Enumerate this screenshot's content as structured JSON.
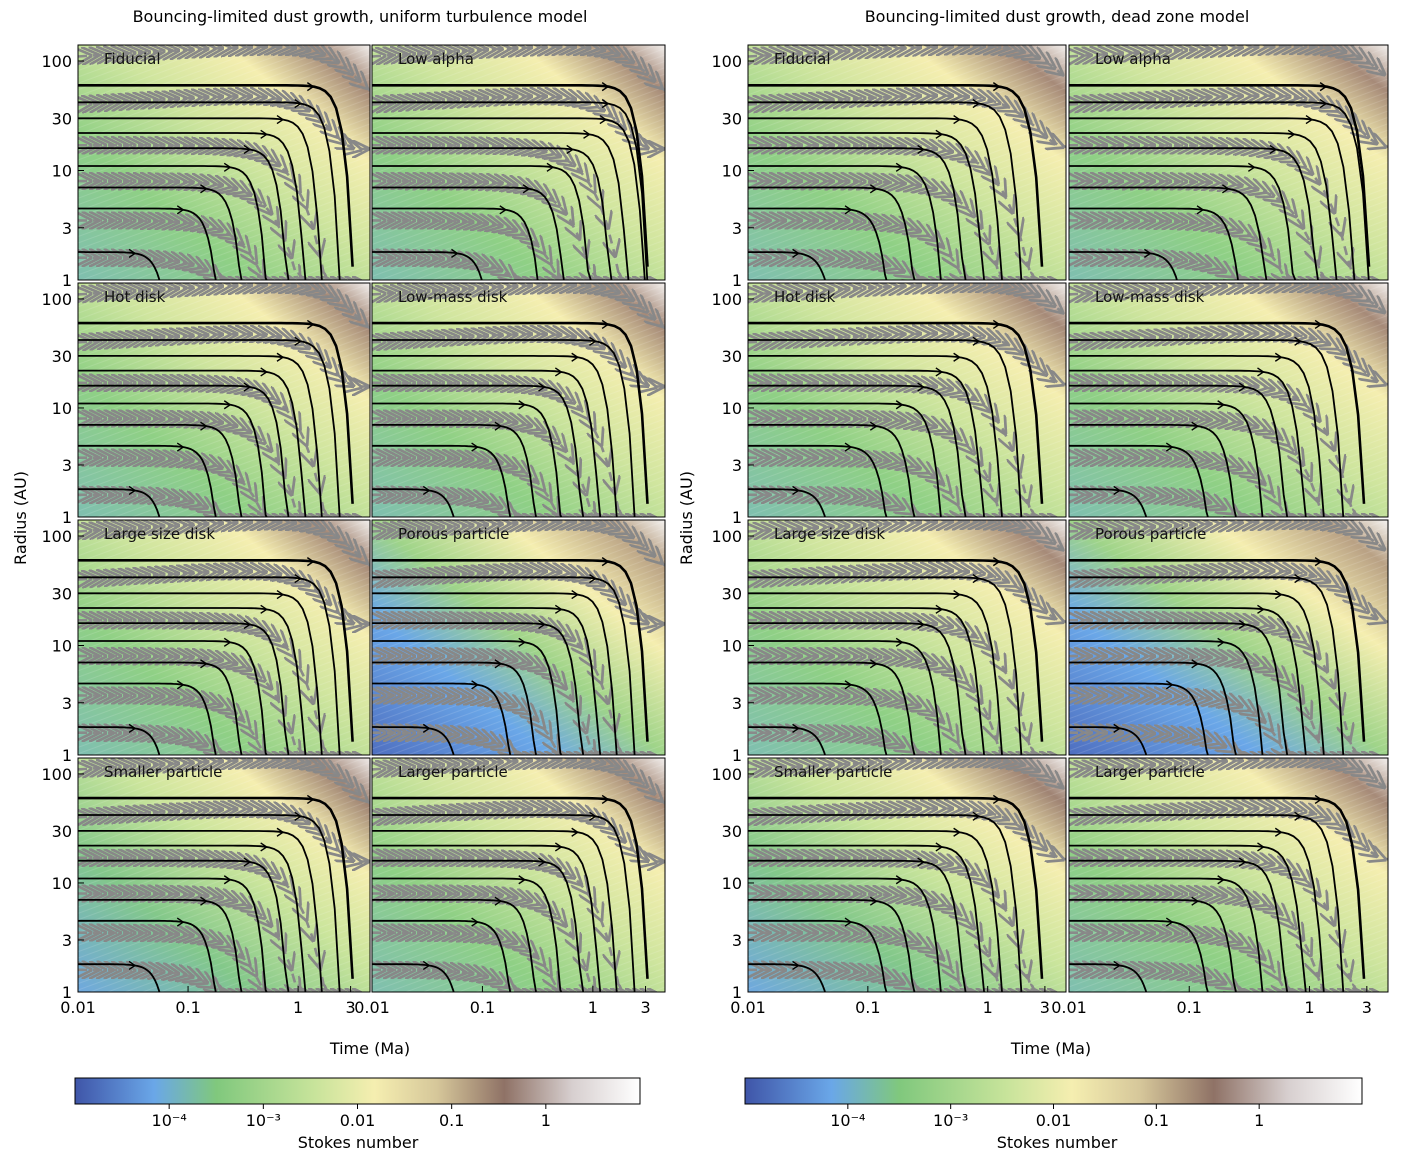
{
  "figures": [
    {
      "title": "Bouncing-limited dust growth,  uniform turbulence model",
      "ylabel": "Radius (AU)",
      "xlabel": "Time (Ma)",
      "colorbar_label": "Stokes number",
      "panels": [
        "Fiducial",
        "Low alpha",
        "Hot disk",
        "Low-mass disk",
        "Large size disk",
        "Porous particle",
        "Smaller particle",
        "Larger particle"
      ]
    },
    {
      "title": "Bouncing-limited dust growth,  dead zone model",
      "ylabel": "Radius (AU)",
      "xlabel": "Time (Ma)",
      "colorbar_label": "Stokes number",
      "panels": [
        "Fiducial",
        "Low alpha",
        "Hot disk",
        "Low-mass disk",
        "Large size disk",
        "Porous particle",
        "Smaller particle",
        "Larger particle"
      ]
    }
  ],
  "axes": {
    "x_ticks": [
      "0.01",
      "0.1",
      "1",
      "3"
    ],
    "x_tick_values": [
      0.01,
      0.1,
      1,
      3
    ],
    "y_ticks": [
      "100",
      "30",
      "10",
      "3",
      "1"
    ],
    "y_tick_values": [
      100,
      30,
      10,
      3,
      1
    ],
    "colorbar_ticks": [
      "10⁻⁴",
      "10⁻³",
      "0.01",
      "0.1",
      "1"
    ],
    "colorbar_tick_values": [
      0.0001,
      0.001,
      0.01,
      0.1,
      1
    ]
  },
  "chart_data": {
    "type": "heatmap",
    "x_scale": "log",
    "y_scale": "log",
    "xlim": [
      0.01,
      4.5
    ],
    "ylim": [
      1,
      140
    ],
    "colorbar_scale": "log",
    "colorbar_range": [
      1e-05,
      10
    ],
    "colormap": [
      "#3f55a8",
      "#6aa7e8",
      "#80c87d",
      "#c6e39a",
      "#f5eeb0",
      "#d6c79a",
      "#8f7266",
      "#d7cfcf",
      "#ffffff"
    ],
    "line_styles": {
      "particle_trajectory": "solid black with arrows",
      "gas_trajectory": "dashed grey with arrows"
    },
    "grid": false,
    "legend": "none"
  }
}
